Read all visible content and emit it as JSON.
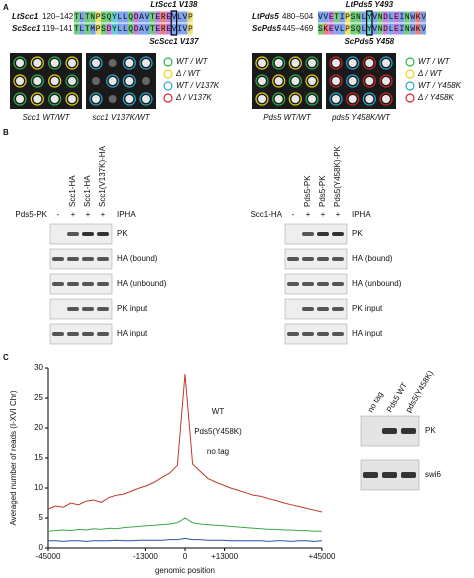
{
  "panel_a": {
    "label": "A",
    "left": {
      "alignment": [
        {
          "name": "LtScc1",
          "range": "120–142",
          "sequence": "TLTNPSQYLLQDAVTEREVLVP"
        },
        {
          "name": "ScScc1",
          "range": "119–141",
          "sequence": "TLTMPSDYLLQDAVTEREVIVP"
        }
      ],
      "top_marker": "LtScc1 V138",
      "bottom_marker": "ScScc1 V137",
      "plates": [
        "Scc1 WT/WT",
        "scc1 V137K/WT"
      ],
      "legend": [
        "WT / WT",
        "Δ / WT",
        "WT / V137K",
        "Δ / V137K"
      ]
    },
    "right": {
      "alignment": [
        {
          "name": "LtPds5",
          "range": "480–504",
          "sequence": "VVETIPSNLYVNDLEINWKV"
        },
        {
          "name": "ScPds5",
          "range": "445–469",
          "sequence": "SKEVLPSQLYVNDLEINWKV"
        }
      ],
      "top_marker": "LtPds5 Y493",
      "bottom_marker": "ScPds5 Y458",
      "plates": [
        "Pds5 WT/WT",
        "pds5 Y458K/WT"
      ],
      "legend": [
        "WT / WT",
        "Δ / WT",
        "WT / Y458K",
        "Δ / Y458K"
      ]
    }
  },
  "panel_b": {
    "label": "B",
    "left": {
      "lanes": [
        "Scc1-HA",
        "Scc1-HA",
        "Scc1(V137K)-HA"
      ],
      "row_label": "Pds5-PK",
      "signs": [
        "-",
        "+",
        "+",
        "+"
      ],
      "ip": "IPHA",
      "blots": [
        "PK",
        "HA (bound)",
        "HA (unbound)",
        "PK input",
        "HA input"
      ]
    },
    "right": {
      "lanes": [
        "Pds5-PK",
        "Pds5-PK",
        "Pds5(Y458K)-PK"
      ],
      "row_label": "Scc1-HA",
      "signs": [
        "-",
        "+",
        "+",
        "+"
      ],
      "ip": "IPHA",
      "blots": [
        "PK",
        "HA (bound)",
        "HA (unbound)",
        "PK input",
        "HA input"
      ]
    }
  },
  "panel_c": {
    "label": "C",
    "inset": {
      "lanes": [
        "no tag",
        "Pds5 WT",
        "pds5(Y458K)"
      ],
      "blots": [
        "PK",
        "swi6"
      ]
    }
  },
  "chart_data": {
    "type": "line",
    "x_label": "genomic position",
    "y_label": "Averaged number of reads (I-XVI Chr)",
    "x": [
      -45000,
      -42500,
      -40000,
      -37500,
      -35000,
      -32500,
      -30000,
      -27500,
      -25000,
      -22500,
      -20000,
      -17500,
      -15000,
      -12500,
      -10000,
      -7500,
      -5000,
      -2500,
      0,
      2500,
      5000,
      7500,
      10000,
      12500,
      15000,
      17500,
      20000,
      22500,
      25000,
      27500,
      30000,
      32500,
      35000,
      37500,
      40000,
      42500,
      45000
    ],
    "series": [
      {
        "name": "WT",
        "color": "#c0392b",
        "values": [
          6.5,
          7,
          6.8,
          7.5,
          7.2,
          7.8,
          8,
          7.6,
          8.4,
          8.8,
          9,
          9.5,
          10,
          10.4,
          11,
          11.8,
          12.5,
          13.8,
          29,
          14,
          12.8,
          11.6,
          11,
          10.5,
          10,
          9.6,
          9.2,
          8.8,
          8.6,
          8.2,
          7.9,
          7.5,
          7.2,
          6.9,
          6.6,
          6.3,
          6
        ]
      },
      {
        "name": "Pds5(Y458K)",
        "color": "#3aa84a",
        "values": [
          2.8,
          2.9,
          3,
          2.9,
          3.1,
          3,
          3.2,
          3.1,
          3.3,
          3.2,
          3.4,
          3.5,
          3.6,
          3.7,
          3.8,
          3.9,
          4,
          4.2,
          5,
          4.2,
          4,
          3.9,
          3.8,
          3.7,
          3.6,
          3.5,
          3.4,
          3.3,
          3.2,
          3.1,
          3.1,
          3,
          3,
          2.9,
          2.9,
          2.8,
          2.8
        ]
      },
      {
        "name": "no tag",
        "color": "#2f4fb0",
        "values": [
          1.2,
          1.2,
          1.1,
          1.2,
          1.2,
          1.1,
          1.2,
          1.2,
          1.2,
          1.3,
          1.2,
          1.2,
          1.3,
          1.3,
          1.3,
          1.3,
          1.4,
          1.4,
          1.6,
          1.4,
          1.4,
          1.3,
          1.3,
          1.3,
          1.2,
          1.2,
          1.2,
          1.2,
          1.2,
          1.1,
          1.2,
          1.2,
          1.1,
          1.2,
          1.2,
          1.1,
          1.2
        ]
      }
    ],
    "xlim": [
      -45000,
      45000
    ],
    "xticks": [
      -45000,
      -13000,
      0,
      {
        "value": 13000,
        "label": "+13000"
      },
      {
        "value": 45000,
        "label": "+45000"
      }
    ],
    "ylim": [
      0,
      30
    ],
    "yticks": [
      0,
      5,
      10,
      15,
      20,
      25,
      30
    ]
  }
}
